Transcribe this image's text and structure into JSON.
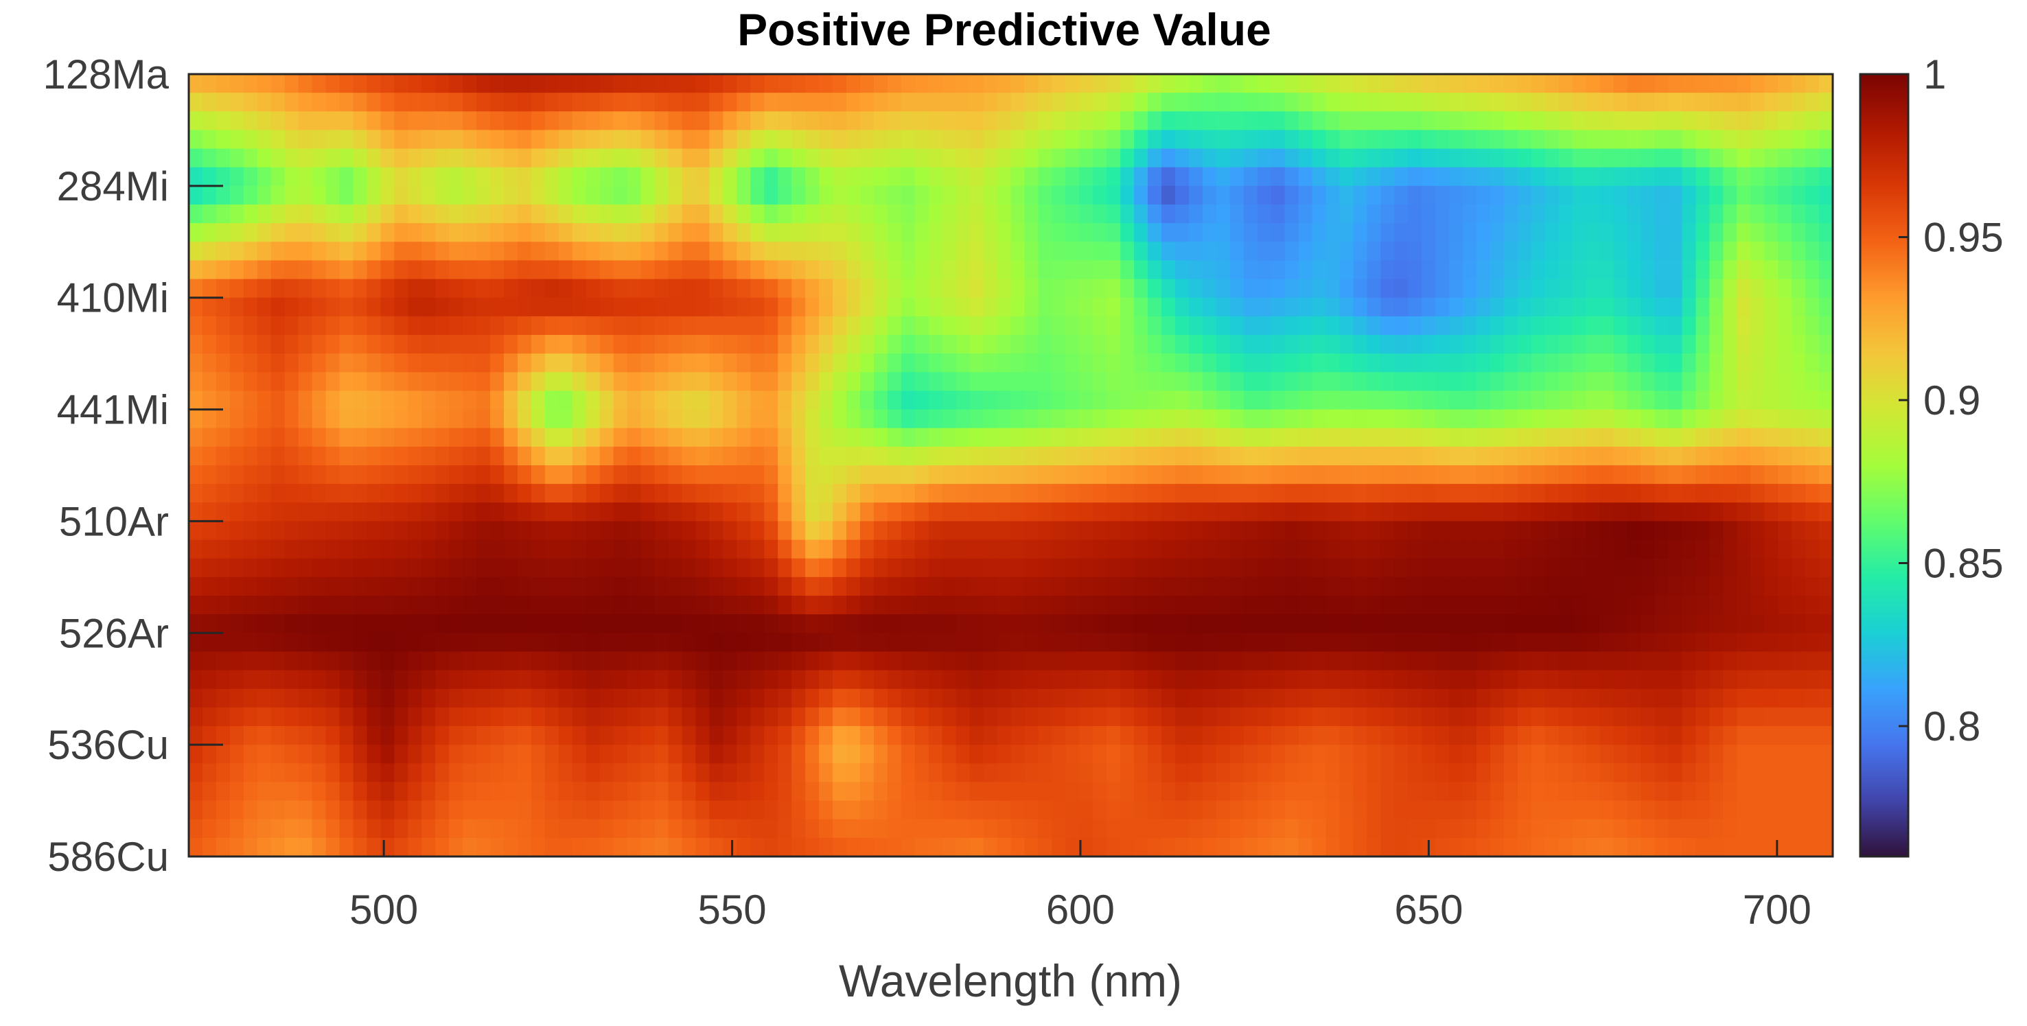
{
  "chart_data": {
    "type": "heatmap",
    "title": "Positive Predictive Value",
    "xlabel": "Wavelength (nm)",
    "ylabel": "",
    "xlim": [
      472,
      708
    ],
    "xticks": [
      500,
      550,
      600,
      650,
      700
    ],
    "xtick_labels": [
      "500",
      "550",
      "600",
      "650",
      "700"
    ],
    "y_categories": [
      "128Ma",
      "284Mi",
      "410Mi",
      "441Mi",
      "510Ar",
      "526Ar",
      "536Cu",
      "586Cu"
    ],
    "colorbar": {
      "clim": [
        0.76,
        1.0
      ],
      "ticks": [
        0.8,
        0.85,
        0.9,
        0.95,
        1.0
      ],
      "tick_labels": [
        "0.8",
        "0.85",
        "0.9",
        "0.95",
        "1"
      ],
      "colormap": "turbo"
    },
    "colormap_stops": [
      "#30123b",
      "#4145ab",
      "#4675ed",
      "#39a2fc",
      "#1bcfd4",
      "#24eca6",
      "#61fc6c",
      "#a4fc3b",
      "#d1e834",
      "#f3c63a",
      "#fe9b2d",
      "#f36315",
      "#d93806",
      "#b11901",
      "#7a0402"
    ],
    "row_profiles": [
      {
        "row": "128Ma",
        "points": [
          [
            472,
            0.93
          ],
          [
            485,
            0.94
          ],
          [
            495,
            0.96
          ],
          [
            505,
            0.97
          ],
          [
            515,
            0.985
          ],
          [
            530,
            0.985
          ],
          [
            545,
            0.975
          ],
          [
            560,
            0.96
          ],
          [
            575,
            0.94
          ],
          [
            590,
            0.93
          ],
          [
            605,
            0.91
          ],
          [
            620,
            0.88
          ],
          [
            635,
            0.9
          ],
          [
            650,
            0.92
          ],
          [
            665,
            0.93
          ],
          [
            680,
            0.95
          ],
          [
            695,
            0.94
          ],
          [
            708,
            0.92
          ]
        ]
      },
      {
        "row": "284Mi",
        "points": [
          [
            472,
            0.83
          ],
          [
            480,
            0.85
          ],
          [
            488,
            0.88
          ],
          [
            495,
            0.86
          ],
          [
            502,
            0.9
          ],
          [
            510,
            0.88
          ],
          [
            520,
            0.9
          ],
          [
            528,
            0.87
          ],
          [
            535,
            0.86
          ],
          [
            545,
            0.91
          ],
          [
            555,
            0.84
          ],
          [
            565,
            0.88
          ],
          [
            575,
            0.87
          ],
          [
            585,
            0.89
          ],
          [
            595,
            0.86
          ],
          [
            605,
            0.84
          ],
          [
            612,
            0.78
          ],
          [
            620,
            0.81
          ],
          [
            628,
            0.79
          ],
          [
            638,
            0.82
          ],
          [
            648,
            0.8
          ],
          [
            660,
            0.81
          ],
          [
            672,
            0.83
          ],
          [
            685,
            0.82
          ],
          [
            695,
            0.86
          ],
          [
            708,
            0.84
          ]
        ]
      },
      {
        "row": "410Mi",
        "points": [
          [
            472,
            0.95
          ],
          [
            485,
            0.97
          ],
          [
            495,
            0.96
          ],
          [
            505,
            0.98
          ],
          [
            515,
            0.97
          ],
          [
            525,
            0.98
          ],
          [
            535,
            0.97
          ],
          [
            545,
            0.97
          ],
          [
            555,
            0.96
          ],
          [
            565,
            0.92
          ],
          [
            575,
            0.88
          ],
          [
            585,
            0.9
          ],
          [
            595,
            0.87
          ],
          [
            605,
            0.88
          ],
          [
            615,
            0.83
          ],
          [
            625,
            0.81
          ],
          [
            635,
            0.82
          ],
          [
            645,
            0.79
          ],
          [
            655,
            0.81
          ],
          [
            665,
            0.83
          ],
          [
            675,
            0.84
          ],
          [
            685,
            0.82
          ],
          [
            695,
            0.9
          ],
          [
            708,
            0.86
          ]
        ]
      },
      {
        "row": "441Mi",
        "points": [
          [
            472,
            0.93
          ],
          [
            485,
            0.95
          ],
          [
            495,
            0.92
          ],
          [
            505,
            0.93
          ],
          [
            515,
            0.94
          ],
          [
            525,
            0.86
          ],
          [
            535,
            0.92
          ],
          [
            545,
            0.9
          ],
          [
            555,
            0.93
          ],
          [
            565,
            0.88
          ],
          [
            575,
            0.84
          ],
          [
            585,
            0.85
          ],
          [
            595,
            0.86
          ],
          [
            605,
            0.87
          ],
          [
            615,
            0.88
          ],
          [
            625,
            0.86
          ],
          [
            635,
            0.87
          ],
          [
            645,
            0.87
          ],
          [
            655,
            0.86
          ],
          [
            665,
            0.87
          ],
          [
            675,
            0.88
          ],
          [
            685,
            0.86
          ],
          [
            695,
            0.89
          ],
          [
            708,
            0.88
          ]
        ]
      },
      {
        "row": "510Ar",
        "points": [
          [
            472,
            0.96
          ],
          [
            485,
            0.97
          ],
          [
            495,
            0.975
          ],
          [
            505,
            0.98
          ],
          [
            515,
            0.99
          ],
          [
            525,
            0.985
          ],
          [
            535,
            0.99
          ],
          [
            545,
            0.98
          ],
          [
            555,
            0.96
          ],
          [
            562,
            0.9
          ],
          [
            570,
            0.95
          ],
          [
            580,
            0.97
          ],
          [
            590,
            0.97
          ],
          [
            600,
            0.975
          ],
          [
            610,
            0.98
          ],
          [
            620,
            0.985
          ],
          [
            630,
            0.99
          ],
          [
            640,
            0.985
          ],
          [
            650,
            0.99
          ],
          [
            660,
            0.99
          ],
          [
            670,
            0.995
          ],
          [
            680,
            1.0
          ],
          [
            690,
            0.995
          ],
          [
            700,
            0.98
          ],
          [
            708,
            0.97
          ]
        ]
      },
      {
        "row": "526Ar",
        "points": [
          [
            472,
            0.995
          ],
          [
            490,
            1.0
          ],
          [
            510,
            1.0
          ],
          [
            530,
            1.0
          ],
          [
            550,
            1.0
          ],
          [
            570,
            1.0
          ],
          [
            590,
            0.995
          ],
          [
            610,
            1.0
          ],
          [
            630,
            1.0
          ],
          [
            650,
            1.0
          ],
          [
            670,
            1.0
          ],
          [
            690,
            0.99
          ],
          [
            708,
            0.985
          ]
        ]
      },
      {
        "row": "536Cu",
        "points": [
          [
            472,
            0.97
          ],
          [
            482,
            0.95
          ],
          [
            492,
            0.96
          ],
          [
            500,
            0.99
          ],
          [
            510,
            0.96
          ],
          [
            520,
            0.95
          ],
          [
            530,
            0.97
          ],
          [
            540,
            0.96
          ],
          [
            548,
            0.985
          ],
          [
            558,
            0.96
          ],
          [
            566,
            0.92
          ],
          [
            575,
            0.95
          ],
          [
            585,
            0.97
          ],
          [
            595,
            0.96
          ],
          [
            605,
            0.95
          ],
          [
            615,
            0.97
          ],
          [
            625,
            0.96
          ],
          [
            635,
            0.95
          ],
          [
            645,
            0.96
          ],
          [
            655,
            0.97
          ],
          [
            665,
            0.95
          ],
          [
            675,
            0.96
          ],
          [
            685,
            0.97
          ],
          [
            695,
            0.95
          ],
          [
            708,
            0.95
          ]
        ]
      },
      {
        "row": "586Cu",
        "points": [
          [
            472,
            0.95
          ],
          [
            488,
            0.93
          ],
          [
            500,
            0.96
          ],
          [
            512,
            0.94
          ],
          [
            525,
            0.95
          ],
          [
            540,
            0.94
          ],
          [
            555,
            0.96
          ],
          [
            570,
            0.95
          ],
          [
            585,
            0.94
          ],
          [
            600,
            0.96
          ],
          [
            615,
            0.95
          ],
          [
            630,
            0.94
          ],
          [
            645,
            0.96
          ],
          [
            660,
            0.95
          ],
          [
            675,
            0.94
          ],
          [
            690,
            0.95
          ],
          [
            708,
            0.95
          ]
        ]
      }
    ]
  }
}
